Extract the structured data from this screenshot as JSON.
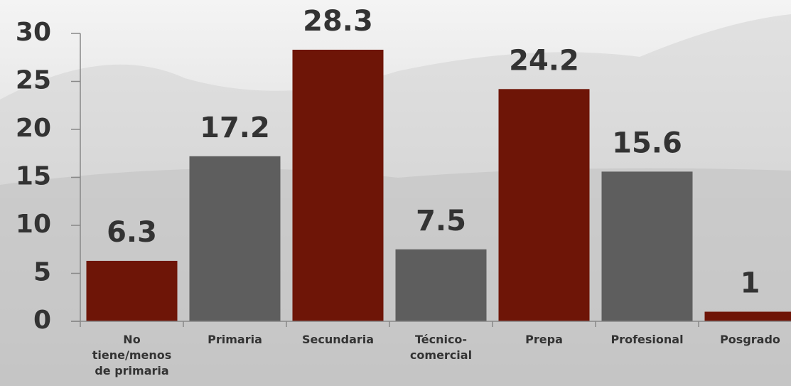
{
  "chart_data": {
    "type": "bar",
    "categories": [
      "No tiene/menos de primaria",
      "Primaria",
      "Secundaria",
      "Técnico-comercial",
      "Prepa",
      "Profesional",
      "Posgrado"
    ],
    "values": [
      6.3,
      17.2,
      28.3,
      7.5,
      24.2,
      15.6,
      1
    ],
    "colors": [
      "#6e1507",
      "#5e5e5e",
      "#6e1507",
      "#5e5e5e",
      "#6e1507",
      "#5e5e5e",
      "#6e1507"
    ],
    "ylim": [
      0,
      30
    ],
    "yticks": [
      0,
      5,
      10,
      15,
      20,
      25,
      30
    ]
  }
}
